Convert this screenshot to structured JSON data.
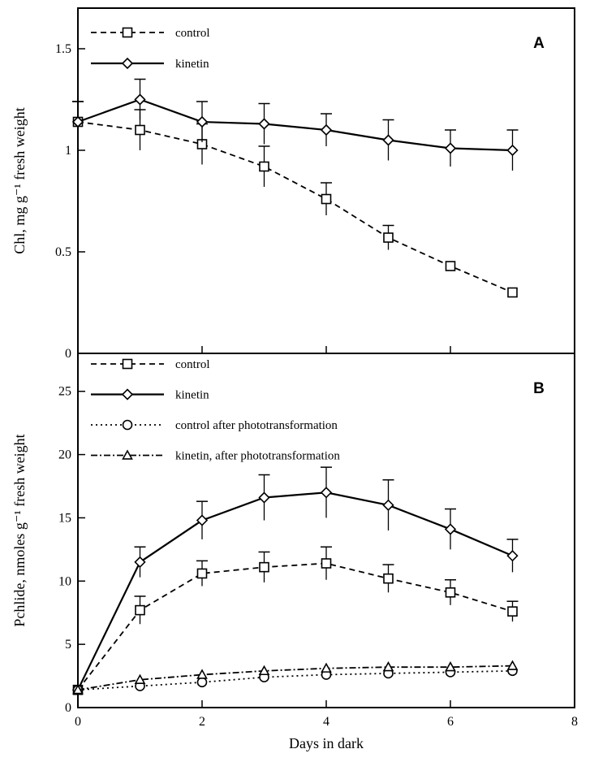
{
  "chart_data": [
    {
      "type": "line",
      "panel": "A",
      "ylabel": "Chl, mg g⁻¹ fresh weight",
      "xlim": [
        0,
        8
      ],
      "ylim": [
        0,
        1.7
      ],
      "yticks": [
        {
          "value": 0,
          "label": "0"
        },
        {
          "value": 0.5,
          "label": "0.5"
        },
        {
          "value": 1,
          "label": "1"
        },
        {
          "value": 1.5,
          "label": "1.5"
        }
      ],
      "xticks": [
        {
          "value": 0,
          "label": ""
        },
        {
          "value": 2,
          "label": ""
        },
        {
          "value": 4,
          "label": ""
        },
        {
          "value": 6,
          "label": ""
        },
        {
          "value": 8,
          "label": ""
        }
      ],
      "legend_position": "top-left",
      "series": [
        {
          "name": "control",
          "marker": "square",
          "line": "dashed",
          "points": [
            {
              "x": 0,
              "y": 1.14,
              "err": 0.1
            },
            {
              "x": 1,
              "y": 1.1,
              "err": 0.1
            },
            {
              "x": 2,
              "y": 1.03,
              "err": 0.1
            },
            {
              "x": 3,
              "y": 0.92,
              "err": 0.1
            },
            {
              "x": 4,
              "y": 0.76,
              "err": 0.08
            },
            {
              "x": 5,
              "y": 0.57,
              "err": 0.06
            },
            {
              "x": 6,
              "y": 0.43,
              "err": 0
            },
            {
              "x": 7,
              "y": 0.3,
              "err": 0
            }
          ]
        },
        {
          "name": "kinetin",
          "marker": "diamond",
          "line": "solid",
          "points": [
            {
              "x": 0,
              "y": 1.14,
              "err": 0.1
            },
            {
              "x": 1,
              "y": 1.25,
              "err": 0.1
            },
            {
              "x": 2,
              "y": 1.14,
              "err": 0.1
            },
            {
              "x": 3,
              "y": 1.13,
              "err": 0.1
            },
            {
              "x": 4,
              "y": 1.1,
              "err": 0.08
            },
            {
              "x": 5,
              "y": 1.05,
              "err": 0.1
            },
            {
              "x": 6,
              "y": 1.01,
              "err": 0.09
            },
            {
              "x": 7,
              "y": 1.0,
              "err": 0.1
            }
          ]
        }
      ]
    },
    {
      "type": "line",
      "panel": "B",
      "ylabel": "Pchlide, nmoles g⁻¹ fresh weight",
      "xlabel": "Days in dark",
      "xlim": [
        0,
        8
      ],
      "ylim": [
        0,
        28
      ],
      "yticks": [
        {
          "value": 0,
          "label": "0"
        },
        {
          "value": 5,
          "label": "5"
        },
        {
          "value": 10,
          "label": "10"
        },
        {
          "value": 15,
          "label": "15"
        },
        {
          "value": 20,
          "label": "20"
        },
        {
          "value": 25,
          "label": "25"
        }
      ],
      "xticks": [
        {
          "value": 0,
          "label": "0"
        },
        {
          "value": 2,
          "label": "2"
        },
        {
          "value": 4,
          "label": "4"
        },
        {
          "value": 6,
          "label": "6"
        },
        {
          "value": 8,
          "label": "8"
        }
      ],
      "legend_position": "top-left",
      "series": [
        {
          "name": "control",
          "marker": "square",
          "line": "dashed",
          "points": [
            {
              "x": 0,
              "y": 1.4,
              "err": 0
            },
            {
              "x": 1,
              "y": 7.7,
              "err": 1.1
            },
            {
              "x": 2,
              "y": 10.6,
              "err": 1.0
            },
            {
              "x": 3,
              "y": 11.1,
              "err": 1.2
            },
            {
              "x": 4,
              "y": 11.4,
              "err": 1.3
            },
            {
              "x": 5,
              "y": 10.2,
              "err": 1.1
            },
            {
              "x": 6,
              "y": 9.1,
              "err": 1.0
            },
            {
              "x": 7,
              "y": 7.6,
              "err": 0.8
            }
          ]
        },
        {
          "name": "kinetin",
          "marker": "diamond",
          "line": "solid",
          "points": [
            {
              "x": 0,
              "y": 1.4,
              "err": 0
            },
            {
              "x": 1,
              "y": 11.5,
              "err": 1.2
            },
            {
              "x": 2,
              "y": 14.8,
              "err": 1.5
            },
            {
              "x": 3,
              "y": 16.6,
              "err": 1.8
            },
            {
              "x": 4,
              "y": 17.0,
              "err": 2.0
            },
            {
              "x": 5,
              "y": 16.0,
              "err": 2.0
            },
            {
              "x": 6,
              "y": 14.1,
              "err": 1.6
            },
            {
              "x": 7,
              "y": 12.0,
              "err": 1.3
            }
          ]
        },
        {
          "name": "control after phototransformation",
          "marker": "circle",
          "line": "dotted",
          "points": [
            {
              "x": 0,
              "y": 1.4,
              "err": 0
            },
            {
              "x": 1,
              "y": 1.7,
              "err": 0
            },
            {
              "x": 2,
              "y": 2.0,
              "err": 0
            },
            {
              "x": 3,
              "y": 2.4,
              "err": 0
            },
            {
              "x": 4,
              "y": 2.6,
              "err": 0
            },
            {
              "x": 5,
              "y": 2.7,
              "err": 0
            },
            {
              "x": 6,
              "y": 2.8,
              "err": 0
            },
            {
              "x": 7,
              "y": 2.9,
              "err": 0
            }
          ]
        },
        {
          "name": "kinetin, after phototransformation",
          "marker": "triangle",
          "line": "dashdot",
          "points": [
            {
              "x": 0,
              "y": 1.4,
              "err": 0
            },
            {
              "x": 1,
              "y": 2.2,
              "err": 0
            },
            {
              "x": 2,
              "y": 2.6,
              "err": 0
            },
            {
              "x": 3,
              "y": 2.9,
              "err": 0
            },
            {
              "x": 4,
              "y": 3.1,
              "err": 0
            },
            {
              "x": 5,
              "y": 3.2,
              "err": 0
            },
            {
              "x": 6,
              "y": 3.2,
              "err": 0
            },
            {
              "x": 7,
              "y": 3.3,
              "err": 0
            }
          ]
        }
      ]
    }
  ]
}
